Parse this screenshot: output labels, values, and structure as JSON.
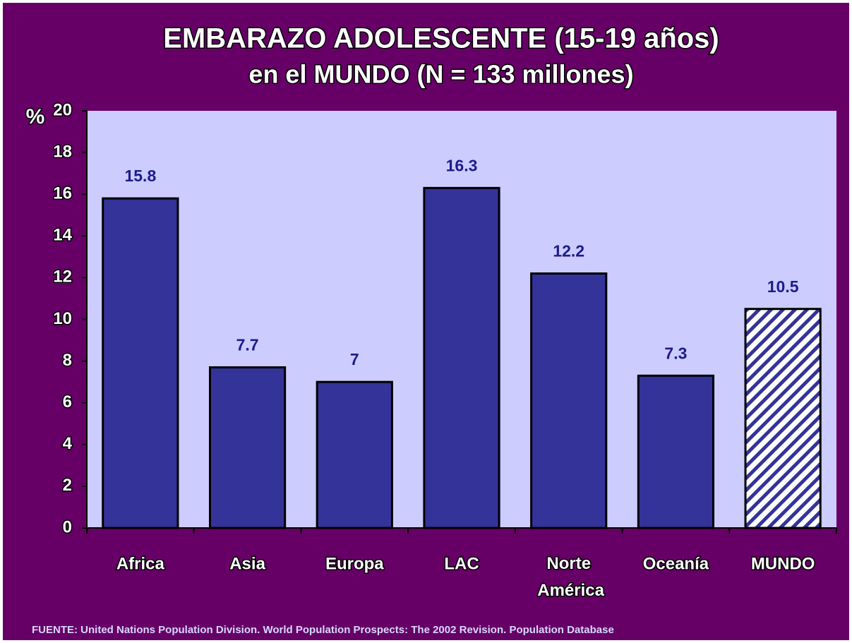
{
  "chart_data": {
    "type": "bar",
    "title": "EMBARAZO ADOLESCENTE (15-19 años)",
    "subtitle": "en el MUNDO  (N = 133 millones)",
    "y_label": "%",
    "categories": [
      "Africa",
      "Asia",
      "Europa",
      "LAC",
      "Norte América",
      "Oceanía",
      "MUNDO"
    ],
    "values": [
      15.8,
      7.7,
      7,
      16.3,
      12.2,
      7.3,
      10.5
    ],
    "bar_styles": [
      "solid",
      "solid",
      "solid",
      "solid",
      "solid",
      "solid",
      "hatched"
    ],
    "color": "#333399",
    "ylim": [
      0,
      20
    ],
    "yticks": [
      0,
      2,
      4,
      6,
      8,
      10,
      12,
      14,
      16,
      18,
      20
    ],
    "grid": false,
    "source": "FUENTE: United Nations Population Division. World Population Prospects: The 2002 Revision. Population Database"
  }
}
